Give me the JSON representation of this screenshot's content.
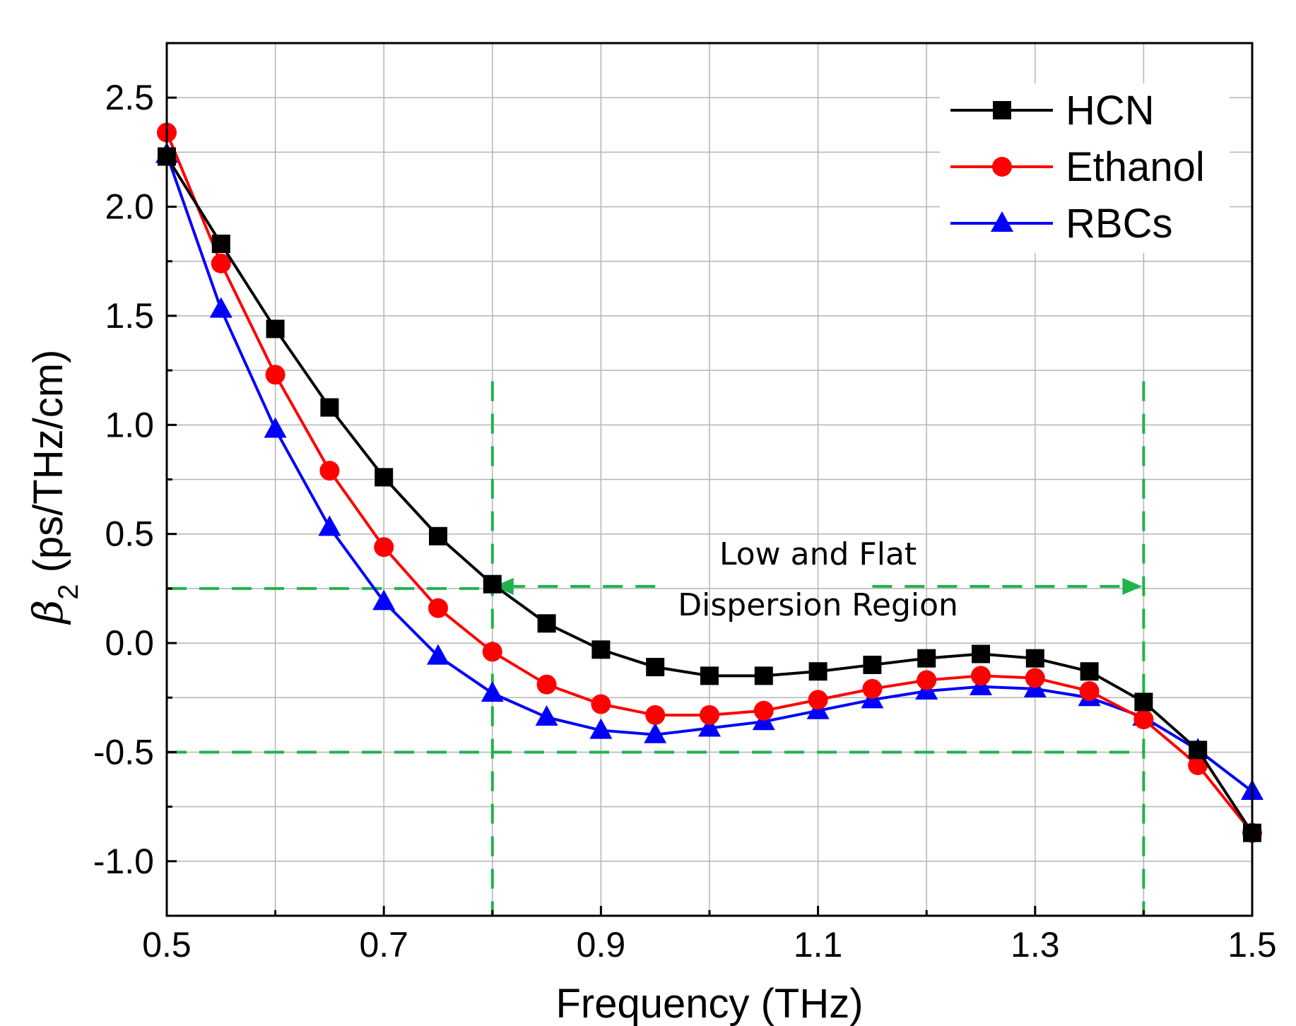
{
  "chart_data": {
    "type": "line",
    "title": "",
    "xlabel": "Frequency (THz)",
    "ylabel_symbol": "β",
    "ylabel_subscript": "2",
    "ylabel_units": " (ps/THz/cm)",
    "xlim": [
      0.5,
      1.5
    ],
    "ylim": [
      -1.25,
      2.75
    ],
    "x_ticks": [
      0.5,
      0.7,
      0.9,
      1.1,
      1.3,
      1.5
    ],
    "x_tick_labels": [
      "0.5",
      "0.7",
      "0.9",
      "1.1",
      "1.3",
      "1.5"
    ],
    "y_ticks": [
      -1.0,
      -0.5,
      0.0,
      0.5,
      1.0,
      1.5,
      2.0,
      2.5
    ],
    "y_tick_labels": [
      "-1.0",
      "-0.5",
      "0.0",
      "0.5",
      "1.0",
      "1.5",
      "2.0",
      "2.5"
    ],
    "grid": true,
    "legend_position": "top-right",
    "x": [
      0.5,
      0.55,
      0.6,
      0.65,
      0.7,
      0.75,
      0.8,
      0.85,
      0.9,
      0.95,
      1.0,
      1.05,
      1.1,
      1.15,
      1.2,
      1.25,
      1.3,
      1.35,
      1.4,
      1.45,
      1.5
    ],
    "series": [
      {
        "name": "HCN",
        "color": "#000000",
        "marker": "square",
        "values": [
          2.23,
          1.83,
          1.44,
          1.08,
          0.76,
          0.49,
          0.27,
          0.09,
          -0.03,
          -0.11,
          -0.15,
          -0.15,
          -0.13,
          -0.1,
          -0.07,
          -0.05,
          -0.07,
          -0.13,
          -0.27,
          -0.49,
          -0.87
        ]
      },
      {
        "name": "Ethanol",
        "color": "#ff0000",
        "marker": "circle",
        "values": [
          2.34,
          1.74,
          1.23,
          0.79,
          0.44,
          0.16,
          -0.04,
          -0.19,
          -0.28,
          -0.33,
          -0.33,
          -0.31,
          -0.26,
          -0.21,
          -0.17,
          -0.15,
          -0.16,
          -0.22,
          -0.35,
          -0.56,
          -0.87
        ]
      },
      {
        "name": "RBCs",
        "color": "#0000ff",
        "marker": "triangle",
        "values": [
          2.24,
          1.53,
          0.98,
          0.53,
          0.19,
          -0.06,
          -0.23,
          -0.34,
          -0.4,
          -0.42,
          -0.39,
          -0.36,
          -0.31,
          -0.26,
          -0.22,
          -0.2,
          -0.21,
          -0.25,
          -0.34,
          -0.49,
          -0.68
        ]
      }
    ],
    "annotation": {
      "lines": [
        "Low and Flat",
        "Dispersion Region"
      ],
      "color": "#22b24c",
      "x_bounds": [
        0.8,
        1.4
      ],
      "y_bounds": [
        -0.5,
        0.25
      ]
    }
  }
}
